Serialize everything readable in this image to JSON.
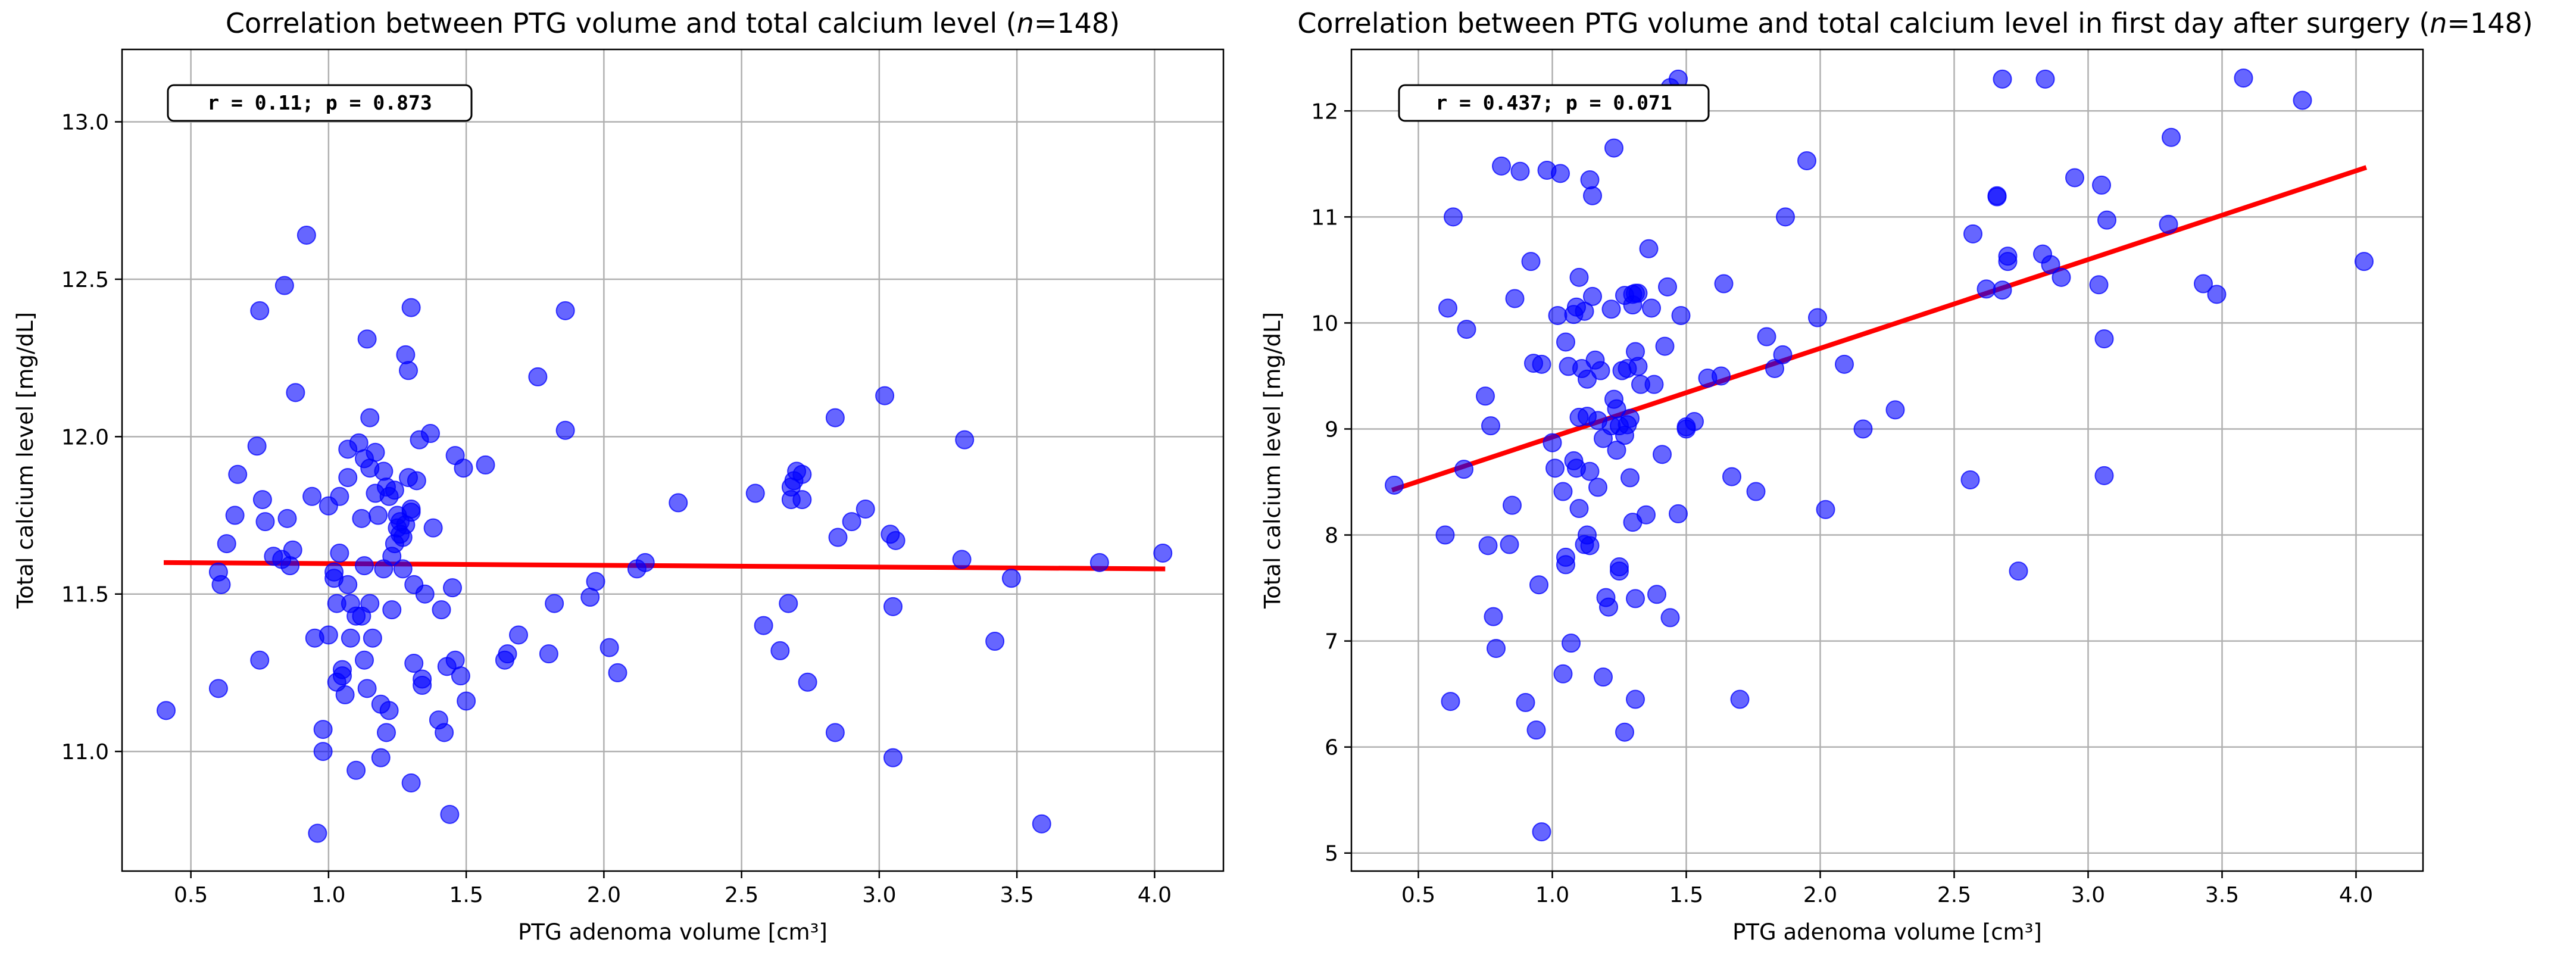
{
  "chart_data": [
    {
      "type": "scatter",
      "title": "Correlation between PTG volume and total calcium level (n=148)",
      "title_parts": [
        "Correlation between PTG volume and total calcium level (",
        "n",
        "=148)"
      ],
      "xlabel": "PTG adenoma volume [cm³]",
      "ylabel": "Total calcium level [mg/dL]",
      "xlim": [
        0.25,
        4.25
      ],
      "ylim": [
        10.62,
        13.23
      ],
      "xticks": [
        0.5,
        1.0,
        1.5,
        2.0,
        2.5,
        3.0,
        3.5,
        4.0
      ],
      "xtick_labels": [
        "0.5",
        "1.0",
        "1.5",
        "2.0",
        "2.5",
        "3.0",
        "3.5",
        "4.0"
      ],
      "yticks": [
        11.0,
        11.5,
        12.0,
        12.5,
        13.0
      ],
      "ytick_labels": [
        "11.0",
        "11.5",
        "12.0",
        "12.5",
        "13.0"
      ],
      "grid": true,
      "annotation": "r = 0.11; p = 0.873",
      "point_color": "#0000ff",
      "line_color": "#ff0000",
      "regression_line": {
        "x": [
          0.41,
          4.03
        ],
        "y": [
          11.6,
          11.58
        ]
      },
      "points": [
        [
          0.41,
          11.13
        ],
        [
          0.6,
          11.2
        ],
        [
          0.61,
          11.53
        ],
        [
          0.6,
          11.57
        ],
        [
          0.63,
          11.66
        ],
        [
          0.66,
          11.75
        ],
        [
          0.67,
          11.88
        ],
        [
          0.74,
          11.97
        ],
        [
          0.75,
          12.4
        ],
        [
          0.76,
          11.8
        ],
        [
          0.75,
          11.29
        ],
        [
          0.77,
          11.73
        ],
        [
          0.8,
          11.62
        ],
        [
          0.83,
          11.61
        ],
        [
          0.84,
          12.48
        ],
        [
          0.85,
          11.74
        ],
        [
          0.86,
          11.59
        ],
        [
          0.87,
          11.64
        ],
        [
          0.88,
          12.14
        ],
        [
          0.92,
          12.64
        ],
        [
          0.94,
          11.81
        ],
        [
          0.95,
          11.36
        ],
        [
          0.96,
          10.74
        ],
        [
          0.98,
          11.07
        ],
        [
          0.98,
          11.0
        ],
        [
          1.0,
          11.37
        ],
        [
          1.0,
          11.78
        ],
        [
          1.02,
          11.57
        ],
        [
          1.02,
          11.55
        ],
        [
          1.03,
          11.22
        ],
        [
          1.03,
          11.47
        ],
        [
          1.04,
          11.63
        ],
        [
          1.04,
          11.81
        ],
        [
          1.05,
          11.26
        ],
        [
          1.05,
          11.24
        ],
        [
          1.06,
          11.18
        ],
        [
          1.07,
          11.53
        ],
        [
          1.07,
          11.87
        ],
        [
          1.07,
          11.96
        ],
        [
          1.08,
          11.47
        ],
        [
          1.08,
          11.36
        ],
        [
          1.1,
          10.94
        ],
        [
          1.1,
          11.43
        ],
        [
          1.11,
          11.98
        ],
        [
          1.12,
          11.43
        ],
        [
          1.12,
          11.74
        ],
        [
          1.13,
          11.29
        ],
        [
          1.13,
          11.59
        ],
        [
          1.13,
          11.93
        ],
        [
          1.14,
          12.31
        ],
        [
          1.14,
          11.2
        ],
        [
          1.15,
          11.9
        ],
        [
          1.15,
          12.06
        ],
        [
          1.15,
          11.47
        ],
        [
          1.16,
          11.36
        ],
        [
          1.17,
          11.95
        ],
        [
          1.17,
          11.82
        ],
        [
          1.18,
          11.75
        ],
        [
          1.19,
          11.15
        ],
        [
          1.19,
          10.98
        ],
        [
          1.2,
          11.58
        ],
        [
          1.2,
          11.89
        ],
        [
          1.21,
          11.06
        ],
        [
          1.21,
          11.84
        ],
        [
          1.22,
          11.81
        ],
        [
          1.22,
          11.13
        ],
        [
          1.23,
          11.62
        ],
        [
          1.23,
          11.45
        ],
        [
          1.24,
          11.66
        ],
        [
          1.24,
          11.83
        ],
        [
          1.25,
          11.75
        ],
        [
          1.25,
          11.71
        ],
        [
          1.26,
          11.73
        ],
        [
          1.26,
          11.69
        ],
        [
          1.27,
          11.58
        ],
        [
          1.27,
          11.68
        ],
        [
          1.28,
          11.72
        ],
        [
          1.28,
          12.26
        ],
        [
          1.29,
          12.21
        ],
        [
          1.29,
          11.87
        ],
        [
          1.3,
          12.41
        ],
        [
          1.3,
          11.76
        ],
        [
          1.3,
          11.77
        ],
        [
          1.3,
          10.9
        ],
        [
          1.31,
          11.28
        ],
        [
          1.31,
          11.53
        ],
        [
          1.32,
          11.86
        ],
        [
          1.33,
          11.99
        ],
        [
          1.34,
          11.23
        ],
        [
          1.34,
          11.21
        ],
        [
          1.35,
          11.5
        ],
        [
          1.37,
          12.01
        ],
        [
          1.38,
          11.71
        ],
        [
          1.4,
          11.1
        ],
        [
          1.41,
          11.45
        ],
        [
          1.42,
          11.06
        ],
        [
          1.43,
          11.27
        ],
        [
          1.44,
          10.8
        ],
        [
          1.45,
          11.52
        ],
        [
          1.46,
          11.29
        ],
        [
          1.46,
          11.94
        ],
        [
          1.48,
          11.24
        ],
        [
          1.49,
          11.9
        ],
        [
          1.5,
          11.16
        ],
        [
          1.57,
          11.91
        ],
        [
          1.64,
          11.29
        ],
        [
          1.65,
          11.31
        ],
        [
          1.69,
          11.37
        ],
        [
          1.76,
          12.19
        ],
        [
          1.8,
          11.31
        ],
        [
          1.82,
          11.47
        ],
        [
          1.86,
          12.4
        ],
        [
          1.86,
          12.02
        ],
        [
          1.95,
          11.49
        ],
        [
          1.97,
          11.54
        ],
        [
          2.02,
          11.33
        ],
        [
          2.05,
          11.25
        ],
        [
          2.12,
          11.58
        ],
        [
          2.15,
          11.6
        ],
        [
          2.27,
          11.79
        ],
        [
          2.55,
          11.82
        ],
        [
          2.58,
          11.4
        ],
        [
          2.64,
          11.32
        ],
        [
          2.67,
          11.47
        ],
        [
          2.68,
          11.84
        ],
        [
          2.68,
          11.8
        ],
        [
          2.69,
          11.86
        ],
        [
          2.7,
          11.89
        ],
        [
          2.72,
          11.88
        ],
        [
          2.72,
          11.8
        ],
        [
          2.74,
          11.22
        ],
        [
          2.84,
          12.06
        ],
        [
          2.84,
          11.06
        ],
        [
          2.85,
          11.68
        ],
        [
          2.9,
          11.73
        ],
        [
          2.95,
          11.77
        ],
        [
          3.02,
          12.13
        ],
        [
          3.04,
          11.69
        ],
        [
          3.05,
          11.46
        ],
        [
          3.05,
          10.98
        ],
        [
          3.06,
          11.67
        ],
        [
          3.3,
          11.61
        ],
        [
          3.31,
          11.99
        ],
        [
          3.42,
          11.35
        ],
        [
          3.48,
          11.55
        ],
        [
          3.59,
          10.77
        ],
        [
          3.8,
          11.6
        ],
        [
          4.03,
          11.63
        ]
      ]
    },
    {
      "type": "scatter",
      "title": "Correlation between PTG volume and total calcium level in first day after surgery (n=148)",
      "title_parts": [
        "Correlation between PTG volume and total calcium level in first day after surgery (",
        "n",
        "=148)"
      ],
      "xlabel": "PTG adenoma volume [cm³]",
      "ylabel": "Total calcium level [mg/dL]",
      "xlim": [
        0.25,
        4.25
      ],
      "ylim": [
        4.83,
        12.58
      ],
      "xticks": [
        0.5,
        1.0,
        1.5,
        2.0,
        2.5,
        3.0,
        3.5,
        4.0
      ],
      "xtick_labels": [
        "0.5",
        "1.0",
        "1.5",
        "2.0",
        "2.5",
        "3.0",
        "3.5",
        "4.0"
      ],
      "yticks": [
        5,
        6,
        7,
        8,
        9,
        10,
        11,
        12
      ],
      "ytick_labels": [
        "5",
        "6",
        "7",
        "8",
        "9",
        "10",
        "11",
        "12"
      ],
      "grid": true,
      "annotation": "r = 0.437; p = 0.071",
      "point_color": "#0000ff",
      "line_color": "#ff0000",
      "regression_line": {
        "x": [
          0.41,
          4.03
        ],
        "y": [
          8.43,
          11.46
        ]
      },
      "points": [
        [
          0.41,
          8.47
        ],
        [
          0.6,
          8.0
        ],
        [
          0.61,
          10.14
        ],
        [
          0.62,
          6.43
        ],
        [
          0.63,
          11.0
        ],
        [
          0.67,
          8.62
        ],
        [
          0.68,
          9.94
        ],
        [
          0.75,
          9.31
        ],
        [
          0.76,
          7.9
        ],
        [
          0.77,
          9.03
        ],
        [
          0.78,
          7.23
        ],
        [
          0.79,
          6.93
        ],
        [
          0.81,
          11.48
        ],
        [
          0.84,
          7.91
        ],
        [
          0.85,
          8.28
        ],
        [
          0.86,
          10.23
        ],
        [
          0.88,
          11.43
        ],
        [
          0.9,
          6.42
        ],
        [
          0.92,
          10.58
        ],
        [
          0.93,
          9.62
        ],
        [
          0.94,
          6.16
        ],
        [
          0.95,
          7.53
        ],
        [
          0.96,
          5.2
        ],
        [
          0.98,
          11.44
        ],
        [
          1.0,
          8.87
        ],
        [
          1.01,
          8.63
        ],
        [
          1.02,
          10.07
        ],
        [
          1.03,
          11.41
        ],
        [
          1.04,
          8.41
        ],
        [
          1.04,
          6.69
        ],
        [
          1.05,
          7.79
        ],
        [
          1.05,
          7.72
        ],
        [
          1.06,
          9.59
        ],
        [
          1.07,
          6.98
        ],
        [
          1.08,
          10.08
        ],
        [
          1.08,
          8.7
        ],
        [
          1.09,
          10.15
        ],
        [
          1.1,
          9.11
        ],
        [
          1.1,
          10.43
        ],
        [
          1.1,
          8.25
        ],
        [
          1.11,
          9.57
        ],
        [
          1.12,
          10.11
        ],
        [
          1.12,
          7.91
        ],
        [
          1.13,
          9.47
        ],
        [
          1.13,
          9.12
        ],
        [
          1.13,
          8.0
        ],
        [
          1.14,
          11.35
        ],
        [
          1.14,
          8.6
        ],
        [
          1.15,
          11.2
        ],
        [
          1.16,
          9.65
        ],
        [
          1.17,
          9.08
        ],
        [
          1.17,
          8.45
        ],
        [
          1.18,
          9.55
        ],
        [
          1.19,
          6.66
        ],
        [
          1.19,
          8.91
        ],
        [
          1.2,
          7.41
        ],
        [
          1.21,
          7.32
        ],
        [
          1.22,
          10.13
        ],
        [
          1.23,
          11.65
        ],
        [
          1.23,
          9.28
        ],
        [
          1.24,
          8.8
        ],
        [
          1.24,
          9.19
        ],
        [
          1.25,
          7.7
        ],
        [
          1.25,
          7.66
        ],
        [
          1.26,
          9.55
        ],
        [
          1.27,
          8.94
        ],
        [
          1.27,
          6.14
        ],
        [
          1.28,
          9.04
        ],
        [
          1.28,
          9.57
        ],
        [
          1.29,
          9.1
        ],
        [
          1.29,
          8.54
        ],
        [
          1.3,
          8.12
        ],
        [
          1.3,
          10.17
        ],
        [
          1.3,
          10.27
        ],
        [
          1.31,
          6.45
        ],
        [
          1.31,
          7.4
        ],
        [
          1.31,
          9.73
        ],
        [
          1.32,
          10.28
        ],
        [
          1.32,
          9.59
        ],
        [
          1.35,
          8.19
        ],
        [
          1.36,
          10.7
        ],
        [
          1.37,
          10.14
        ],
        [
          1.38,
          9.42
        ],
        [
          1.39,
          7.44
        ],
        [
          1.41,
          8.76
        ],
        [
          1.42,
          9.78
        ],
        [
          1.43,
          10.34
        ],
        [
          1.44,
          7.22
        ],
        [
          1.44,
          12.22
        ],
        [
          1.47,
          12.3
        ],
        [
          1.47,
          8.2
        ],
        [
          1.48,
          10.07
        ],
        [
          1.5,
          9.0
        ],
        [
          1.5,
          9.02
        ],
        [
          1.53,
          9.07
        ],
        [
          1.58,
          9.48
        ],
        [
          1.63,
          9.5
        ],
        [
          1.64,
          10.37
        ],
        [
          1.67,
          8.55
        ],
        [
          1.7,
          6.45
        ],
        [
          1.76,
          8.41
        ],
        [
          1.8,
          9.87
        ],
        [
          1.83,
          9.57
        ],
        [
          1.86,
          9.7
        ],
        [
          1.87,
          11.0
        ],
        [
          1.95,
          11.53
        ],
        [
          1.99,
          10.05
        ],
        [
          2.02,
          8.24
        ],
        [
          2.09,
          9.61
        ],
        [
          2.16,
          9.0
        ],
        [
          2.28,
          9.18
        ],
        [
          2.56,
          8.52
        ],
        [
          2.57,
          10.84
        ],
        [
          2.62,
          10.32
        ],
        [
          2.66,
          11.2
        ],
        [
          2.66,
          11.19
        ],
        [
          2.68,
          12.3
        ],
        [
          2.68,
          10.31
        ],
        [
          2.7,
          10.63
        ],
        [
          2.7,
          10.58
        ],
        [
          2.74,
          7.66
        ],
        [
          2.83,
          10.65
        ],
        [
          2.84,
          12.3
        ],
        [
          2.86,
          10.55
        ],
        [
          2.9,
          10.43
        ],
        [
          2.95,
          11.37
        ],
        [
          3.04,
          10.36
        ],
        [
          3.05,
          11.3
        ],
        [
          3.06,
          9.85
        ],
        [
          3.06,
          8.56
        ],
        [
          3.07,
          10.97
        ],
        [
          3.3,
          10.93
        ],
        [
          3.31,
          11.75
        ],
        [
          3.43,
          10.37
        ],
        [
          3.48,
          10.27
        ],
        [
          3.58,
          12.31
        ],
        [
          3.8,
          12.1
        ],
        [
          4.03,
          10.58
        ],
        [
          1.25,
          9.03
        ],
        [
          1.15,
          10.25
        ],
        [
          0.96,
          9.61
        ],
        [
          1.22,
          9.03
        ],
        [
          1.05,
          9.82
        ],
        [
          1.33,
          9.42
        ],
        [
          1.27,
          10.26
        ],
        [
          1.14,
          7.9
        ],
        [
          1.09,
          8.63
        ],
        [
          1.31,
          10.28
        ]
      ]
    }
  ]
}
